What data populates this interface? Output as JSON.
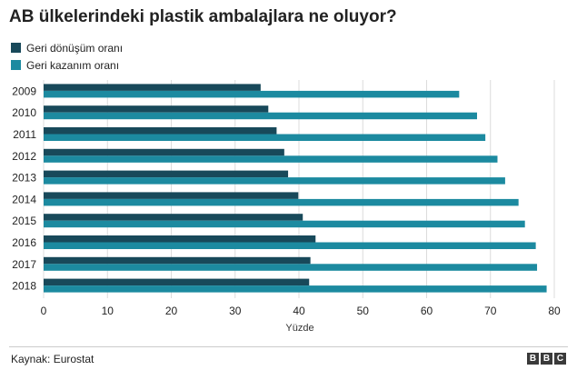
{
  "title": "AB ülkelerindeki plastik ambalajlara ne oluyor?",
  "source": "Kaynak: Eurostat",
  "logo": [
    "B",
    "B",
    "C"
  ],
  "chart_data": {
    "type": "bar",
    "orientation": "horizontal",
    "categories": [
      "2009",
      "2010",
      "2011",
      "2012",
      "2013",
      "2014",
      "2015",
      "2016",
      "2017",
      "2018"
    ],
    "series": [
      {
        "name": "Geri dönüşüm oranı",
        "color": "#18495a",
        "values": [
          34.0,
          35.2,
          36.5,
          37.7,
          38.3,
          39.9,
          40.6,
          42.6,
          41.8,
          41.6
        ]
      },
      {
        "name": "Geri kazanım oranı",
        "color": "#1c8aa0",
        "values": [
          65.1,
          67.9,
          69.2,
          71.1,
          72.3,
          74.4,
          75.4,
          77.1,
          77.3,
          78.8
        ]
      }
    ],
    "xlabel": "Yüzde",
    "xlim": [
      0,
      80
    ],
    "xticks": [
      0,
      10,
      20,
      30,
      40,
      50,
      60,
      70,
      80
    ],
    "grid": true,
    "legend_position": "top-left"
  }
}
